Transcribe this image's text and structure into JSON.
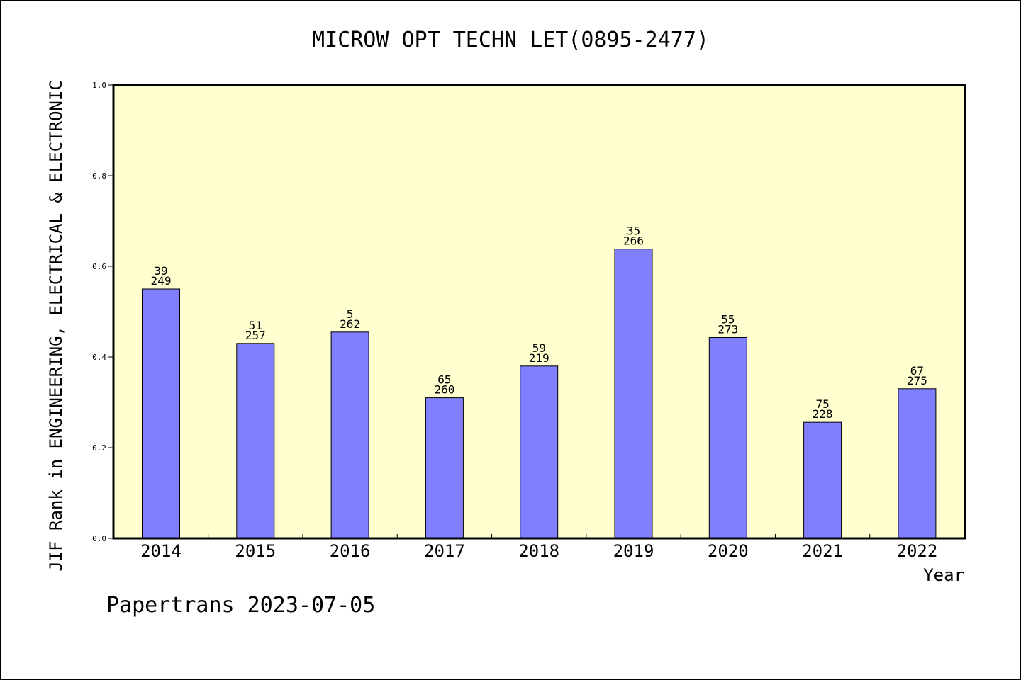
{
  "chart_data": {
    "type": "bar",
    "title": "MICROW OPT TECHN LET(0895-2477)",
    "xlabel": "Year",
    "ylabel": "JIF Rank in ENGINEERING, ELECTRICAL & ELECTRONIC",
    "ylim": [
      0,
      1.0
    ],
    "yticks": [
      "0.0",
      "0.2",
      "0.4",
      "0.6",
      "0.8",
      "1.0"
    ],
    "categories": [
      "2014",
      "2015",
      "2016",
      "2017",
      "2018",
      "2019",
      "2020",
      "2021",
      "2022"
    ],
    "values": [
      0.55,
      0.43,
      0.455,
      0.31,
      0.38,
      0.638,
      0.443,
      0.256,
      0.33
    ],
    "rank_labels": [
      "39",
      "51",
      "5",
      "65",
      "59",
      "35",
      "55",
      "75",
      "67"
    ],
    "total_labels": [
      "249",
      "257",
      "262",
      "260",
      "219",
      "266",
      "273",
      "228",
      "275"
    ],
    "grid": false,
    "colors": {
      "bar": "#8080ff",
      "plot_background": "#ffffd0"
    }
  },
  "footer": {
    "credit": "Papertrans 2023-07-05"
  }
}
